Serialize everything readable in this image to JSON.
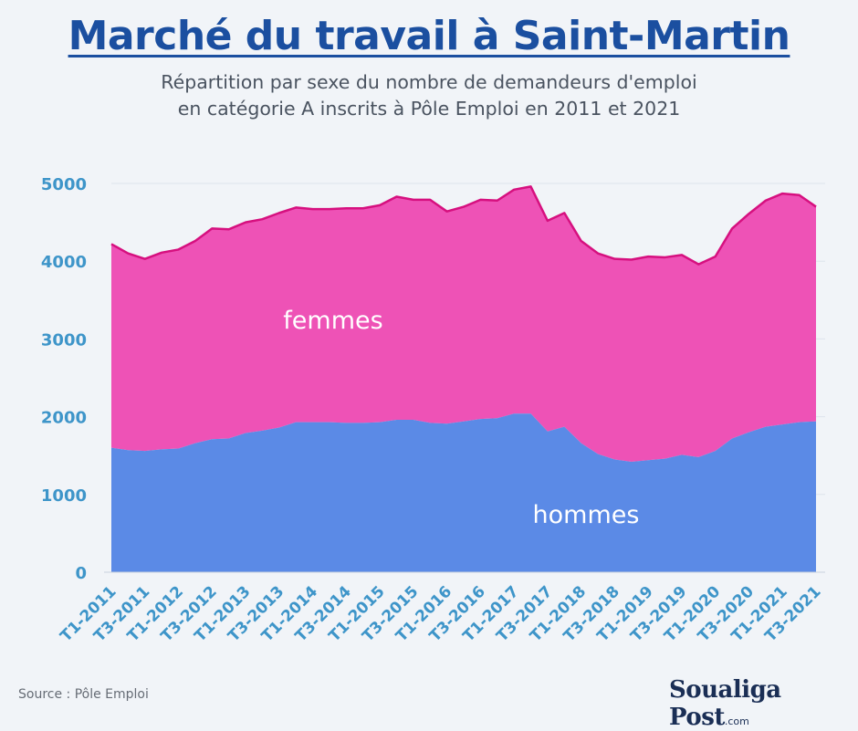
{
  "chart_data": {
    "type": "area",
    "stacked": true,
    "title": "Marché du travail à Saint-Martin",
    "subtitle_line1": "Répartition par sexe du nombre de demandeurs d'emploi",
    "subtitle_line2": "en catégorie A inscrits à Pôle Emploi en 2011 et 2021",
    "ylim": [
      0,
      5000
    ],
    "yticks": [
      "0",
      "1000",
      "2000",
      "3000",
      "4000",
      "5000"
    ],
    "grid": true,
    "x": [
      "T1-2011",
      "T2-2011",
      "T3-2011",
      "T4-2011",
      "T1-2012",
      "T2-2012",
      "T3-2012",
      "T4-2012",
      "T1-2013",
      "T2-2013",
      "T3-2013",
      "T4-2013",
      "T1-2014",
      "T2-2014",
      "T3-2014",
      "T4-2014",
      "T1-2015",
      "T2-2015",
      "T3-2015",
      "T4-2015",
      "T1-2016",
      "T2-2016",
      "T3-2016",
      "T4-2016",
      "T1-2017",
      "T2-2017",
      "T3-2017",
      "T4-2017",
      "T1-2018",
      "T2-2018",
      "T3-2018",
      "T4-2018",
      "T1-2019",
      "T2-2019",
      "T3-2019",
      "T4-2019",
      "T1-2020",
      "T2-2020",
      "T3-2020",
      "T4-2020",
      "T1-2021",
      "T2-2021",
      "T3-2021"
    ],
    "xtick_labels": [
      "T1-2011",
      "T3-2011",
      "T1-2012",
      "T3-2012",
      "T1-2013",
      "T3-2013",
      "T1-2014",
      "T3-2014",
      "T1-2015",
      "T3-2015",
      "T1-2016",
      "T3-2016",
      "T1-2017",
      "T3-2017",
      "T1-2018",
      "T3-2018",
      "T1-2019",
      "T3-2019",
      "T1-2020",
      "T3-2020",
      "T1-2021",
      "T3-2021"
    ],
    "series": [
      {
        "name": "hommes",
        "color": "#5b8ae6",
        "values": [
          1600,
          1570,
          1560,
          1580,
          1590,
          1660,
          1710,
          1720,
          1790,
          1820,
          1860,
          1930,
          1930,
          1930,
          1920,
          1920,
          1930,
          1960,
          1960,
          1920,
          1910,
          1940,
          1970,
          1980,
          2040,
          2040,
          1810,
          1870,
          1660,
          1520,
          1450,
          1420,
          1440,
          1460,
          1510,
          1480,
          1560,
          1720,
          1800,
          1870,
          1900,
          1930,
          1940
        ]
      },
      {
        "name": "femmes",
        "color": "#ee52b6",
        "values": [
          2620,
          2530,
          2470,
          2530,
          2560,
          2600,
          2710,
          2690,
          2710,
          2720,
          2760,
          2760,
          2740,
          2740,
          2760,
          2760,
          2790,
          2870,
          2830,
          2870,
          2730,
          2760,
          2820,
          2800,
          2880,
          2920,
          2710,
          2750,
          2600,
          2580,
          2580,
          2600,
          2620,
          2590,
          2570,
          2480,
          2500,
          2700,
          2810,
          2910,
          2970,
          2920,
          2760
        ]
      }
    ],
    "total_line_color": "#d6107f"
  },
  "footer": {
    "source": "Source : Pôle Emploi",
    "brand": "Soualiga Post",
    "brand_suffix": ".com"
  }
}
